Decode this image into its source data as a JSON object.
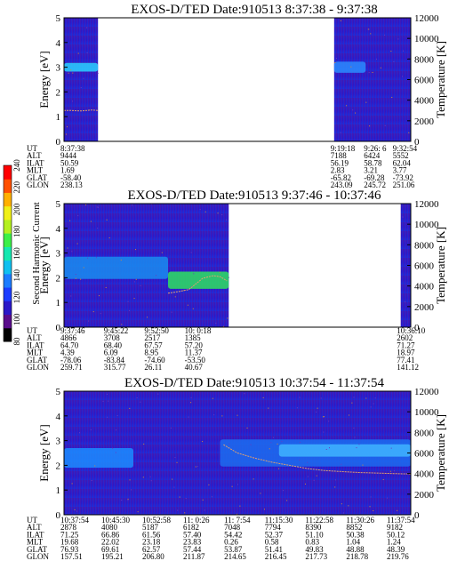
{
  "figure": {
    "colorbar": {
      "label": "Second Harmonic Current",
      "tick_values": [
        80,
        100,
        120,
        140,
        160,
        180,
        200,
        220,
        240
      ],
      "colors": [
        "#000000",
        "#5a0c8c",
        "#2a18c8",
        "#1c3cff",
        "#1c7cff",
        "#10c0f0",
        "#16e8b0",
        "#3cf048",
        "#b4f020",
        "#f0f018",
        "#ffb000",
        "#ff5000",
        "#ff0000"
      ]
    }
  },
  "chart_data": [
    {
      "type": "heatmap",
      "title": "EXOS-D/TED   Date:910513  8:37:38 - 9:37:38",
      "ylabel": "Energy [eV]",
      "y2label": "Temperature [K]",
      "ylim": [
        0,
        5
      ],
      "y2lim": [
        0,
        12000
      ],
      "yticks": [
        0,
        1,
        2,
        3,
        4,
        5
      ],
      "y2ticks": [
        0,
        2000,
        4000,
        6000,
        8000,
        10000,
        12000
      ],
      "data_blocks": [
        [
          0,
          0.098
        ],
        [
          0.779,
          1.0
        ]
      ],
      "bands": [
        {
          "x": [
            0.0,
            0.098
          ],
          "energy_ev": 3.0,
          "width_ev": 0.35,
          "color": "#2ad2ff"
        },
        {
          "x": [
            0.779,
            0.87
          ],
          "energy_ev": 3.0,
          "width_ev": 0.45,
          "color": "#2a8cff"
        }
      ],
      "temperature_trace": {
        "x": [
          0.0,
          0.02,
          0.05,
          0.08,
          0.098
        ],
        "temperature_k": [
          3000,
          3000,
          2950,
          3050,
          3000
        ]
      },
      "table_rows": [
        {
          "label": "UT",
          "cols": [
            {
              "x": 0.0,
              "v": "8:37:38"
            },
            {
              "x": 0.779,
              "v": "9:19:18"
            },
            {
              "x": 0.875,
              "v": "9:26: 6"
            },
            {
              "x": 0.958,
              "v": "9:32:54"
            }
          ]
        },
        {
          "label": "ALT",
          "cols": [
            {
              "x": 0.0,
              "v": "9444"
            },
            {
              "x": 0.779,
              "v": "7188"
            },
            {
              "x": 0.875,
              "v": "6424"
            },
            {
              "x": 0.958,
              "v": "5552"
            }
          ]
        },
        {
          "label": "ILAT",
          "cols": [
            {
              "x": 0.0,
              "v": "50.59"
            },
            {
              "x": 0.779,
              "v": "56.19"
            },
            {
              "x": 0.875,
              "v": "58.78"
            },
            {
              "x": 0.958,
              "v": "62.04"
            }
          ]
        },
        {
          "label": "MLT",
          "cols": [
            {
              "x": 0.0,
              "v": "1.69"
            },
            {
              "x": 0.779,
              "v": "2.83"
            },
            {
              "x": 0.875,
              "v": "3.21"
            },
            {
              "x": 0.958,
              "v": "3.77"
            }
          ]
        },
        {
          "label": "GLAT",
          "cols": [
            {
              "x": 0.0,
              "v": "-58.40"
            },
            {
              "x": 0.779,
              "v": "-65.82"
            },
            {
              "x": 0.875,
              "v": "-69.28"
            },
            {
              "x": 0.958,
              "v": "-73.92"
            }
          ]
        },
        {
          "label": "GLON",
          "cols": [
            {
              "x": 0.0,
              "v": "238.13"
            },
            {
              "x": 0.779,
              "v": "243.09"
            },
            {
              "x": 0.875,
              "v": "245.72"
            },
            {
              "x": 0.958,
              "v": "251.06"
            }
          ]
        }
      ]
    },
    {
      "type": "heatmap",
      "title": "EXOS-D/TED   Date:910513  9:37:46 - 10:37:46",
      "ylabel": "Energy [eV]",
      "y2label": "Temperature [K]",
      "ylim": [
        0,
        5
      ],
      "y2lim": [
        0,
        12000
      ],
      "yticks": [
        0,
        1,
        2,
        3,
        4,
        5
      ],
      "y2ticks": [
        0,
        2000,
        4000,
        6000,
        8000,
        10000,
        12000
      ],
      "data_blocks": [
        [
          0,
          0.475
        ],
        [
          0.971,
          1.0
        ]
      ],
      "bands": [
        {
          "x": [
            0.3,
            0.475
          ],
          "energy_ev": 1.9,
          "width_ev": 0.7,
          "color": "#2ee060"
        },
        {
          "x": [
            0.0,
            0.3
          ],
          "energy_ev": 2.4,
          "width_ev": 0.9,
          "color": "#1a8cf0"
        }
      ],
      "temperature_trace": {
        "x": [
          0.3,
          0.33,
          0.36,
          0.38,
          0.4,
          0.43,
          0.45,
          0.47
        ],
        "temperature_k": [
          3300,
          3450,
          3650,
          4200,
          4750,
          5000,
          4900,
          4500
        ]
      },
      "table_rows": [
        {
          "label": "UT",
          "cols": [
            {
              "x": 0.0,
              "v": "9:37:46"
            },
            {
              "x": 0.125,
              "v": "9:45:22"
            },
            {
              "x": 0.242,
              "v": "9:52:50"
            },
            {
              "x": 0.358,
              "v": "10: 0:18"
            },
            {
              "x": 0.97,
              "v": "10:36:10"
            }
          ]
        },
        {
          "label": "ALT",
          "cols": [
            {
              "x": 0.0,
              "v": "4866"
            },
            {
              "x": 0.125,
              "v": "3708"
            },
            {
              "x": 0.242,
              "v": "2517"
            },
            {
              "x": 0.358,
              "v": "1385"
            },
            {
              "x": 0.97,
              "v": "2602"
            }
          ]
        },
        {
          "label": "ILAT",
          "cols": [
            {
              "x": 0.0,
              "v": "64.70"
            },
            {
              "x": 0.125,
              "v": "68.40"
            },
            {
              "x": 0.242,
              "v": "67.57"
            },
            {
              "x": 0.358,
              "v": "57.20"
            },
            {
              "x": 0.97,
              "v": "71.27"
            }
          ]
        },
        {
          "label": "MLT",
          "cols": [
            {
              "x": 0.0,
              "v": "4.39"
            },
            {
              "x": 0.125,
              "v": "6.09"
            },
            {
              "x": 0.242,
              "v": "8.95"
            },
            {
              "x": 0.358,
              "v": "11.37"
            },
            {
              "x": 0.97,
              "v": "18.97"
            }
          ]
        },
        {
          "label": "GLAT",
          "cols": [
            {
              "x": 0.0,
              "v": "-78.06"
            },
            {
              "x": 0.125,
              "v": "-83.84"
            },
            {
              "x": 0.242,
              "v": "-74.60"
            },
            {
              "x": 0.358,
              "v": "-53.50"
            },
            {
              "x": 0.97,
              "v": "77.41"
            }
          ]
        },
        {
          "label": "GLON",
          "cols": [
            {
              "x": 0.0,
              "v": "259.71"
            },
            {
              "x": 0.125,
              "v": "315.77"
            },
            {
              "x": 0.242,
              "v": "26.11"
            },
            {
              "x": 0.358,
              "v": "40.67"
            },
            {
              "x": 0.97,
              "v": "141.12"
            }
          ]
        }
      ]
    },
    {
      "type": "heatmap",
      "title": "EXOS-D/TED   Date:910513  10:37:54 - 11:37:54",
      "ylabel": "Energy [eV]",
      "y2label": "Temperature [K]",
      "ylim": [
        0,
        5
      ],
      "y2lim": [
        0,
        12000
      ],
      "yticks": [
        0,
        1,
        2,
        3,
        4,
        5
      ],
      "y2ticks": [
        0,
        2000,
        4000,
        6000,
        8000,
        10000,
        12000
      ],
      "data_blocks": [
        [
          0,
          1.0
        ]
      ],
      "bands": [
        {
          "x": [
            0.0,
            0.2
          ],
          "energy_ev": 2.3,
          "width_ev": 0.8,
          "color": "#1c8cff"
        },
        {
          "x": [
            0.45,
            1.0
          ],
          "energy_ev": 2.5,
          "width_ev": 1.1,
          "color": "#1c6cf0"
        },
        {
          "x": [
            0.62,
            1.0
          ],
          "energy_ev": 2.6,
          "width_ev": 0.5,
          "color": "#40b4ff"
        }
      ],
      "temperature_trace": {
        "x": [
          0.46,
          0.5,
          0.55,
          0.6,
          0.65,
          0.7,
          0.75,
          0.8,
          0.85,
          0.9,
          0.95,
          1.0
        ],
        "temperature_k": [
          6800,
          6000,
          5500,
          5100,
          4800,
          4500,
          4300,
          4200,
          4100,
          4050,
          4000,
          3950
        ]
      },
      "table_rows": [
        {
          "label": "UT",
          "cols": [
            {
              "x": 0.0,
              "v": "10:37:54"
            },
            {
              "x": 0.118,
              "v": "10:45:30"
            },
            {
              "x": 0.236,
              "v": "10:52:58"
            },
            {
              "x": 0.354,
              "v": "11: 0:26"
            },
            {
              "x": 0.472,
              "v": "11: 7:54"
            },
            {
              "x": 0.589,
              "v": "11:15:30"
            },
            {
              "x": 0.706,
              "v": "11:22:58"
            },
            {
              "x": 0.824,
              "v": "11:30:26"
            },
            {
              "x": 0.941,
              "v": "11:37:54"
            }
          ]
        },
        {
          "label": "ALT",
          "cols": [
            {
              "x": 0.0,
              "v": "2878"
            },
            {
              "x": 0.118,
              "v": "4080"
            },
            {
              "x": 0.236,
              "v": "5187"
            },
            {
              "x": 0.354,
              "v": "6182"
            },
            {
              "x": 0.472,
              "v": "7048"
            },
            {
              "x": 0.589,
              "v": "7794"
            },
            {
              "x": 0.706,
              "v": "8390"
            },
            {
              "x": 0.824,
              "v": "8852"
            },
            {
              "x": 0.941,
              "v": "9182"
            }
          ]
        },
        {
          "label": "ILAT",
          "cols": [
            {
              "x": 0.0,
              "v": "71.25"
            },
            {
              "x": 0.118,
              "v": "66.86"
            },
            {
              "x": 0.236,
              "v": "61.56"
            },
            {
              "x": 0.354,
              "v": "57.40"
            },
            {
              "x": 0.472,
              "v": "54.42"
            },
            {
              "x": 0.589,
              "v": "52.37"
            },
            {
              "x": 0.706,
              "v": "51.10"
            },
            {
              "x": 0.824,
              "v": "50.38"
            },
            {
              "x": 0.941,
              "v": "50.12"
            }
          ]
        },
        {
          "label": "MLT",
          "cols": [
            {
              "x": 0.0,
              "v": "19.68"
            },
            {
              "x": 0.118,
              "v": "22.02"
            },
            {
              "x": 0.236,
              "v": "23.18"
            },
            {
              "x": 0.354,
              "v": "23.83"
            },
            {
              "x": 0.472,
              "v": "0.26"
            },
            {
              "x": 0.589,
              "v": "0.58"
            },
            {
              "x": 0.706,
              "v": "0.83"
            },
            {
              "x": 0.824,
              "v": "1.04"
            },
            {
              "x": 0.941,
              "v": "1.24"
            }
          ]
        },
        {
          "label": "GLAT",
          "cols": [
            {
              "x": 0.0,
              "v": "76.93"
            },
            {
              "x": 0.118,
              "v": "69.61"
            },
            {
              "x": 0.236,
              "v": "62.57"
            },
            {
              "x": 0.354,
              "v": "57.44"
            },
            {
              "x": 0.472,
              "v": "53.87"
            },
            {
              "x": 0.589,
              "v": "51.41"
            },
            {
              "x": 0.706,
              "v": "49.83"
            },
            {
              "x": 0.824,
              "v": "48.88"
            },
            {
              "x": 0.941,
              "v": "48.39"
            }
          ]
        },
        {
          "label": "GLON",
          "cols": [
            {
              "x": 0.0,
              "v": "157.51"
            },
            {
              "x": 0.118,
              "v": "195.21"
            },
            {
              "x": 0.236,
              "v": "206.80"
            },
            {
              "x": 0.354,
              "v": "211.87"
            },
            {
              "x": 0.472,
              "v": "214.65"
            },
            {
              "x": 0.589,
              "v": "216.45"
            },
            {
              "x": 0.706,
              "v": "217.73"
            },
            {
              "x": 0.824,
              "v": "218.78"
            },
            {
              "x": 0.941,
              "v": "219.76"
            }
          ]
        }
      ]
    }
  ]
}
